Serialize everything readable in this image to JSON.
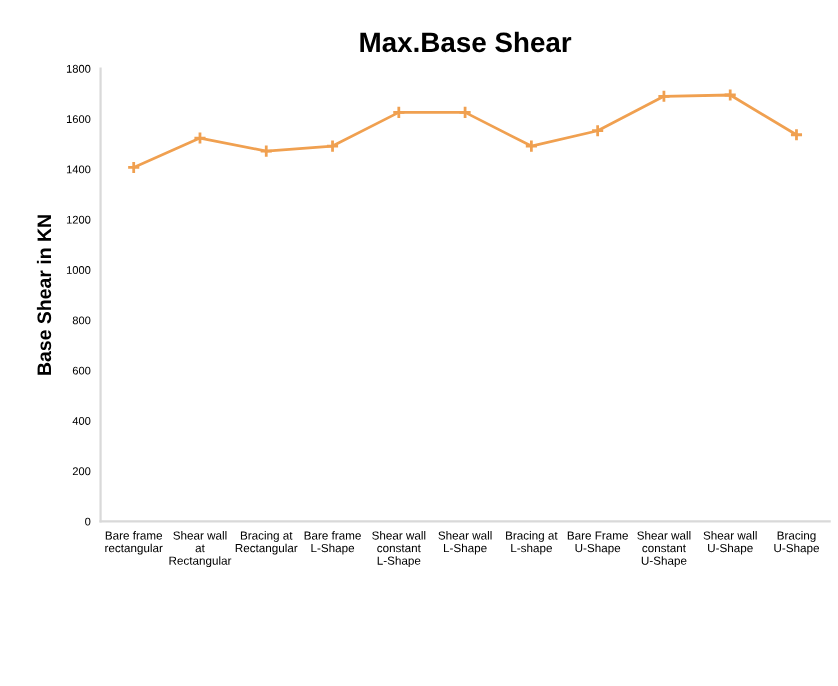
{
  "chart_data": {
    "type": "line",
    "title": "Max.Base Shear",
    "ylabel": "Base Shear in KN",
    "categories": [
      "Bare frame rectangular",
      "Shear wall at Rectangular",
      "Bracing at Rectangular",
      "Bare frame L-Shape",
      "Shear wall constant L-Shape",
      "Shear wall L-Shape",
      "Bracing at L-shape",
      "Bare Frame U-Shape",
      "Shear wall constant U-Shape",
      "Shear wall U-Shape",
      "Bracing U-Shape"
    ],
    "series": [
      {
        "color": "#f0a050",
        "values": [
          1407,
          1524,
          1472,
          1492,
          1626,
          1626,
          1492,
          1553,
          1690,
          1695,
          1537
        ]
      }
    ],
    "ylim": [
      0,
      1800
    ],
    "yticks": [
      0,
      200,
      400,
      600,
      800,
      1000,
      1200,
      1400,
      1600,
      1800
    ],
    "marker": "cross",
    "line_style": "solid",
    "grid": false,
    "legend": false
  }
}
